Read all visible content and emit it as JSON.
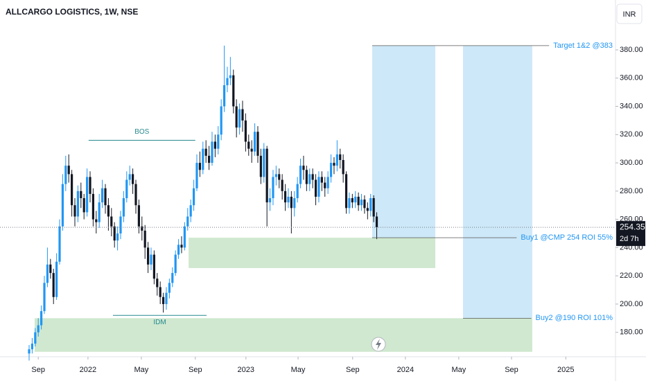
{
  "chart_data": {
    "type": "candlestick",
    "title": "ALLCARGO LOGISTICS, 1W, NSE",
    "currency": "INR",
    "up_color": "#2196f3",
    "down_color": "#131722",
    "candles": [
      [
        165,
        171,
        160,
        168
      ],
      [
        168,
        176,
        165,
        172
      ],
      [
        172,
        183,
        170,
        180
      ],
      [
        180,
        190,
        177,
        185
      ],
      [
        185,
        199,
        182,
        195
      ],
      [
        195,
        220,
        193,
        215
      ],
      [
        215,
        240,
        212,
        228
      ],
      [
        228,
        232,
        218,
        222
      ],
      [
        222,
        225,
        200,
        205
      ],
      [
        205,
        236,
        203,
        230
      ],
      [
        230,
        260,
        228,
        255
      ],
      [
        255,
        292,
        252,
        285
      ],
      [
        285,
        305,
        280,
        298
      ],
      [
        298,
        306,
        286,
        292
      ],
      [
        292,
        295,
        262,
        270
      ],
      [
        270,
        275,
        255,
        262
      ],
      [
        262,
        284,
        258,
        280
      ],
      [
        280,
        286,
        268,
        275
      ],
      [
        275,
        278,
        260,
        265
      ],
      [
        265,
        296,
        262,
        290
      ],
      [
        290,
        294,
        272,
        278
      ],
      [
        278,
        282,
        255,
        260
      ],
      [
        260,
        266,
        250,
        258
      ],
      [
        258,
        278,
        254,
        272
      ],
      [
        272,
        288,
        268,
        282
      ],
      [
        282,
        285,
        264,
        270
      ],
      [
        270,
        275,
        252,
        262
      ],
      [
        262,
        268,
        248,
        255
      ],
      [
        255,
        258,
        240,
        245
      ],
      [
        245,
        255,
        238,
        250
      ],
      [
        250,
        266,
        246,
        262
      ],
      [
        262,
        280,
        258,
        275
      ],
      [
        275,
        294,
        272,
        288
      ],
      [
        288,
        298,
        284,
        292
      ],
      [
        292,
        296,
        278,
        285
      ],
      [
        285,
        288,
        264,
        270
      ],
      [
        270,
        274,
        250,
        255
      ],
      [
        255,
        262,
        245,
        252
      ],
      [
        252,
        256,
        232,
        240
      ],
      [
        240,
        244,
        222,
        228
      ],
      [
        228,
        240,
        224,
        235
      ],
      [
        235,
        238,
        214,
        218
      ],
      [
        218,
        222,
        206,
        212
      ],
      [
        212,
        216,
        200,
        205
      ],
      [
        205,
        208,
        194,
        200
      ],
      [
        200,
        212,
        196,
        208
      ],
      [
        208,
        218,
        204,
        215
      ],
      [
        215,
        226,
        212,
        222
      ],
      [
        222,
        238,
        220,
        235
      ],
      [
        235,
        246,
        232,
        242
      ],
      [
        242,
        248,
        236,
        240
      ],
      [
        240,
        258,
        238,
        255
      ],
      [
        255,
        268,
        252,
        262
      ],
      [
        262,
        274,
        258,
        270
      ],
      [
        270,
        288,
        266,
        282
      ],
      [
        282,
        306,
        280,
        300
      ],
      [
        300,
        308,
        290,
        295
      ],
      [
        295,
        315,
        292,
        310
      ],
      [
        310,
        316,
        300,
        305
      ],
      [
        305,
        312,
        295,
        300
      ],
      [
        300,
        322,
        298,
        315
      ],
      [
        315,
        320,
        304,
        310
      ],
      [
        310,
        326,
        306,
        320
      ],
      [
        320,
        345,
        316,
        340
      ],
      [
        340,
        383,
        336,
        355
      ],
      [
        355,
        368,
        350,
        360
      ],
      [
        360,
        375,
        355,
        362
      ],
      [
        362,
        366,
        335,
        340
      ],
      [
        340,
        345,
        318,
        325
      ],
      [
        325,
        342,
        320,
        338
      ],
      [
        338,
        344,
        322,
        330
      ],
      [
        330,
        335,
        308,
        315
      ],
      [
        315,
        320,
        305,
        310
      ],
      [
        310,
        316,
        300,
        308
      ],
      [
        308,
        328,
        305,
        322
      ],
      [
        322,
        326,
        300,
        305
      ],
      [
        305,
        310,
        285,
        290
      ],
      [
        290,
        314,
        286,
        310
      ],
      [
        310,
        312,
        255,
        272
      ],
      [
        272,
        282,
        266,
        275
      ],
      [
        275,
        295,
        270,
        290
      ],
      [
        290,
        298,
        284,
        292
      ],
      [
        292,
        296,
        282,
        288
      ],
      [
        288,
        292,
        274,
        280
      ],
      [
        280,
        285,
        266,
        272
      ],
      [
        272,
        282,
        268,
        276
      ],
      [
        276,
        280,
        250,
        268
      ],
      [
        268,
        280,
        262,
        275
      ],
      [
        275,
        290,
        272,
        285
      ],
      [
        285,
        303,
        282,
        298
      ],
      [
        298,
        305,
        288,
        295
      ],
      [
        295,
        298,
        280,
        285
      ],
      [
        285,
        296,
        280,
        292
      ],
      [
        292,
        296,
        282,
        288
      ],
      [
        288,
        292,
        270,
        276
      ],
      [
        276,
        294,
        272,
        290
      ],
      [
        290,
        294,
        280,
        286
      ],
      [
        286,
        290,
        276,
        282
      ],
      [
        282,
        294,
        278,
        290
      ],
      [
        290,
        306,
        286,
        300
      ],
      [
        300,
        304,
        292,
        298
      ],
      [
        298,
        316,
        294,
        306
      ],
      [
        306,
        310,
        296,
        302
      ],
      [
        302,
        306,
        286,
        292
      ],
      [
        292,
        294,
        264,
        268
      ],
      [
        268,
        279,
        264,
        275
      ],
      [
        275,
        278,
        268,
        272
      ],
      [
        272,
        280,
        268,
        276
      ],
      [
        276,
        279,
        266,
        270
      ],
      [
        270,
        278,
        266,
        274
      ],
      [
        274,
        277,
        264,
        268
      ],
      [
        268,
        272,
        260,
        266
      ],
      [
        266,
        278,
        262,
        275
      ],
      [
        275,
        277,
        258,
        262
      ],
      [
        262,
        265,
        246,
        254.35
      ]
    ],
    "xlim": [
      -9.55,
      192.3
    ],
    "xticks": [
      {
        "value": 3,
        "label": "Sep"
      },
      {
        "value": 19.3,
        "label": "2022"
      },
      {
        "value": 36.8,
        "label": "May"
      },
      {
        "value": 54.5,
        "label": "Sep"
      },
      {
        "value": 71.1,
        "label": "2023"
      },
      {
        "value": 88.2,
        "label": "May"
      },
      {
        "value": 106.1,
        "label": "Sep"
      },
      {
        "value": 123.4,
        "label": "2024"
      },
      {
        "value": 140.9,
        "label": "May"
      },
      {
        "value": 158.2,
        "label": "Sep"
      },
      {
        "value": 176,
        "label": "2025"
      }
    ],
    "ylim": [
      162.7,
      415.3
    ],
    "yticks": [
      {
        "value": 180,
        "label": "180.00"
      },
      {
        "value": 200,
        "label": "200.00"
      },
      {
        "value": 220,
        "label": "220.00"
      },
      {
        "value": 240,
        "label": "240.00"
      },
      {
        "value": 260,
        "label": "260.00"
      },
      {
        "value": 280,
        "label": "280.00"
      },
      {
        "value": 300,
        "label": "300.00"
      },
      {
        "value": 320,
        "label": "320.00"
      },
      {
        "value": 340,
        "label": "340.00"
      },
      {
        "value": 360,
        "label": "360.00"
      },
      {
        "value": 380,
        "label": "380.00"
      }
    ],
    "zones": [
      {
        "x": [
          112.5,
          133.2
        ],
        "y": [
          247,
          383
        ],
        "color": "#cde8f8"
      },
      {
        "x": [
          142.3,
          165
        ],
        "y": [
          190,
          383
        ],
        "color": "#cde8f8"
      },
      {
        "x": [
          52.3,
          133.2
        ],
        "y": [
          225.5,
          247
        ],
        "color": "#cfe8cf"
      },
      {
        "x": [
          1.8,
          165
        ],
        "y": [
          166.2,
          190
        ],
        "color": "#cfe8cf"
      }
    ],
    "annotations": [
      {
        "text": "Target 1&2 @383",
        "value": 383,
        "x0": 112.5
      },
      {
        "text": "Buy1 @CMP 254 ROI 55%",
        "value": 247,
        "x0": 112.5
      },
      {
        "text": "Buy2 @190 ROI 101%",
        "value": 190,
        "x0": 142.3
      }
    ],
    "structure": [
      {
        "text": "BOS",
        "value": 316,
        "x": [
          19.5,
          54.5
        ]
      },
      {
        "text": "IDM",
        "value": 192,
        "x": [
          27.5,
          58.2
        ]
      }
    ],
    "last_price": 254.35,
    "countdown": "2d 7h"
  }
}
